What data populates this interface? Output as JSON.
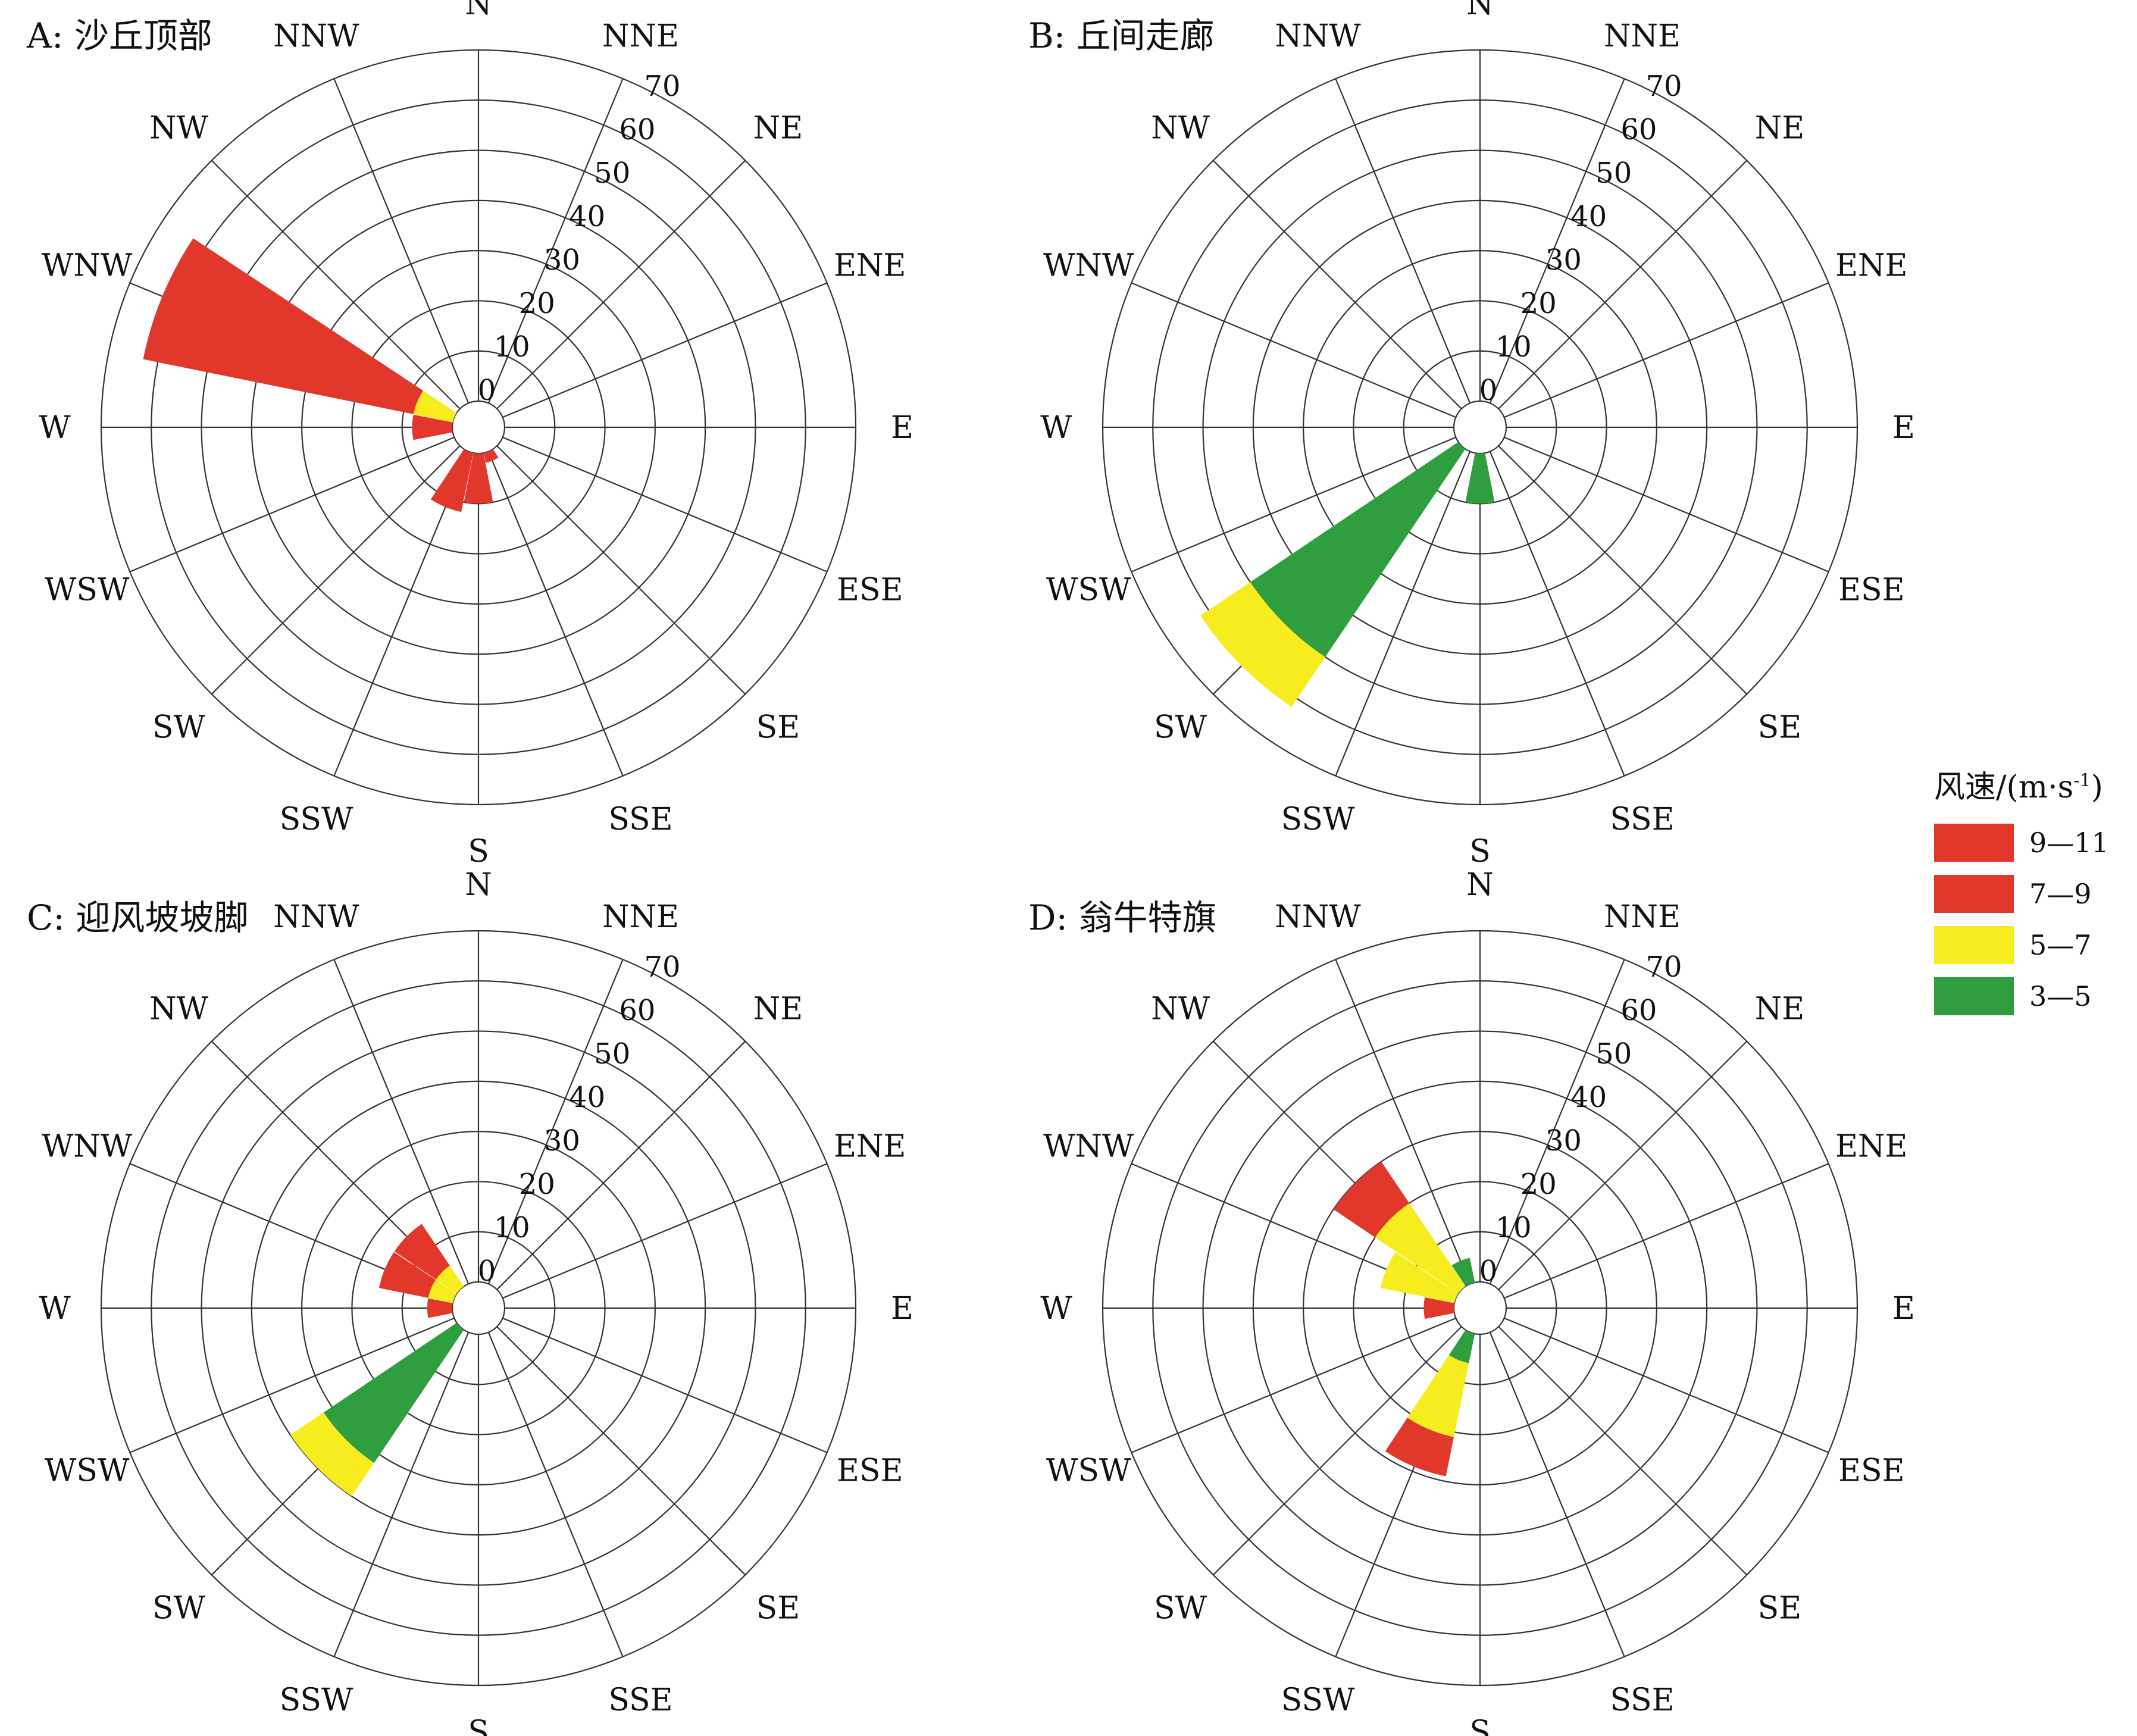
{
  "legend": {
    "title": "风速/(m·s",
    "title_sup": "-1",
    "title_close": ")",
    "items": [
      {
        "label": "9—11",
        "color": "#e2372b"
      },
      {
        "label": "7—9",
        "color": "#e2372b"
      },
      {
        "label": "5—7",
        "color": "#f7ec1e"
      },
      {
        "label": "3—5",
        "color": "#2e9e3f"
      }
    ]
  },
  "chart_data": [
    {
      "type": "windrose",
      "title": "A: 沙丘顶部",
      "directions": [
        "N",
        "NNE",
        "NE",
        "ENE",
        "E",
        "ESE",
        "SE",
        "SSE",
        "S",
        "SSW",
        "SW",
        "WSW",
        "W",
        "WNW",
        "NW",
        "NNW"
      ],
      "radial_ticks": [
        "0",
        "10",
        "20",
        "30",
        "40",
        "50",
        "60",
        "70"
      ],
      "rlim": [
        0,
        70
      ],
      "series": [
        {
          "name": "9—11",
          "color": "#e2372b",
          "values": [
            0,
            0,
            0,
            0,
            0,
            0,
            0,
            0,
            0,
            0,
            0,
            0,
            0,
            55,
            0,
            0
          ]
        },
        {
          "name": "7—9",
          "color": "#e2372b",
          "values": [
            0,
            0,
            0,
            0,
            0,
            0,
            0,
            2,
            10,
            12,
            0,
            0,
            8,
            0,
            0,
            0
          ]
        },
        {
          "name": "5—7",
          "color": "#f7ec1e",
          "values": [
            0,
            0,
            0,
            0,
            0,
            0,
            0,
            0,
            0,
            0,
            0,
            0,
            0,
            8,
            0,
            0
          ]
        },
        {
          "name": "3—5",
          "color": "#2e9e3f",
          "values": [
            0,
            0,
            0,
            0,
            0,
            0,
            0,
            0,
            0,
            0,
            0,
            0,
            0,
            0,
            0,
            0
          ]
        }
      ]
    },
    {
      "type": "windrose",
      "title": "B: 丘间走廊",
      "directions": [
        "N",
        "NNE",
        "NE",
        "ENE",
        "E",
        "ESE",
        "SE",
        "SSE",
        "S",
        "SSW",
        "SW",
        "WSW",
        "W",
        "WNW",
        "NW",
        "NNW"
      ],
      "radial_ticks": [
        "0",
        "10",
        "20",
        "30",
        "40",
        "50",
        "60",
        "70"
      ],
      "rlim": [
        0,
        70
      ],
      "series": [
        {
          "name": "9—11",
          "color": "#e2372b",
          "values": [
            0,
            0,
            0,
            0,
            0,
            0,
            0,
            0,
            0,
            0,
            0,
            0,
            0,
            0,
            0,
            0
          ]
        },
        {
          "name": "7—9",
          "color": "#e2372b",
          "values": [
            0,
            0,
            0,
            0,
            0,
            0,
            0,
            0,
            0,
            0,
            0,
            0,
            0,
            0,
            0,
            0
          ]
        },
        {
          "name": "5—7",
          "color": "#f7ec1e",
          "values": [
            0,
            0,
            0,
            0,
            0,
            0,
            0,
            0,
            0,
            0,
            12,
            0,
            0,
            0,
            0,
            0
          ]
        },
        {
          "name": "3—5",
          "color": "#2e9e3f",
          "values": [
            0,
            0,
            0,
            0,
            0,
            0,
            0,
            0,
            10,
            0,
            50,
            0,
            0,
            0,
            0,
            0
          ]
        }
      ]
    },
    {
      "type": "windrose",
      "title": "C: 迎风坡坡脚",
      "directions": [
        "N",
        "NNE",
        "NE",
        "ENE",
        "E",
        "ESE",
        "SE",
        "SSE",
        "S",
        "SSW",
        "SW",
        "WSW",
        "W",
        "WNW",
        "NW",
        "NNW"
      ],
      "radial_ticks": [
        "0",
        "10",
        "20",
        "30",
        "40",
        "50",
        "60",
        "70"
      ],
      "rlim": [
        0,
        70
      ],
      "series": [
        {
          "name": "9—11",
          "color": "#e2372b",
          "values": [
            0,
            0,
            0,
            0,
            0,
            0,
            0,
            0,
            0,
            0,
            0,
            0,
            0,
            0,
            0,
            0
          ]
        },
        {
          "name": "7—9",
          "color": "#e2372b",
          "values": [
            0,
            0,
            0,
            0,
            0,
            0,
            0,
            0,
            0,
            0,
            0,
            0,
            5,
            10,
            10,
            0
          ]
        },
        {
          "name": "5—7",
          "color": "#f7ec1e",
          "values": [
            0,
            0,
            0,
            0,
            0,
            0,
            0,
            0,
            0,
            0,
            8,
            0,
            0,
            5,
            5,
            0
          ]
        },
        {
          "name": "3—5",
          "color": "#2e9e3f",
          "values": [
            0,
            0,
            0,
            0,
            0,
            0,
            0,
            0,
            0,
            0,
            32,
            0,
            0,
            0,
            0,
            0
          ]
        }
      ]
    },
    {
      "type": "windrose",
      "title": "D: 翁牛特旗",
      "directions": [
        "N",
        "NNE",
        "NE",
        "ENE",
        "E",
        "ESE",
        "SE",
        "SSE",
        "S",
        "SSW",
        "SW",
        "WSW",
        "W",
        "WNW",
        "NW",
        "NNW"
      ],
      "radial_ticks": [
        "0",
        "10",
        "20",
        "30",
        "40",
        "50",
        "60",
        "70"
      ],
      "rlim": [
        0,
        70
      ],
      "series": [
        {
          "name": "9—11",
          "color": "#e2372b",
          "values": [
            0,
            0,
            0,
            0,
            0,
            0,
            0,
            0,
            0,
            0,
            0,
            0,
            0,
            0,
            0,
            0
          ]
        },
        {
          "name": "7—9",
          "color": "#e2372b",
          "values": [
            0,
            0,
            0,
            0,
            0,
            0,
            0,
            0,
            0,
            8,
            0,
            0,
            6,
            0,
            10,
            0
          ]
        },
        {
          "name": "5—7",
          "color": "#f7ec1e",
          "values": [
            0,
            0,
            0,
            0,
            0,
            0,
            0,
            0,
            0,
            15,
            0,
            0,
            0,
            15,
            20,
            0
          ]
        },
        {
          "name": "3—5",
          "color": "#2e9e3f",
          "values": [
            0,
            0,
            0,
            0,
            0,
            0,
            0,
            0,
            0,
            6,
            0,
            0,
            0,
            0,
            0,
            5
          ]
        }
      ]
    }
  ]
}
